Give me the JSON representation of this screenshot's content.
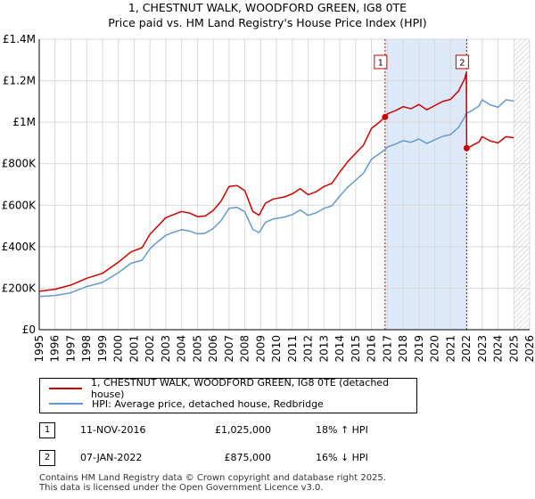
{
  "title_line1": "1, CHESTNUT WALK, WOODFORD GREEN, IG8 0TE",
  "title_line2": "Price paid vs. HM Land Registry's House Price Index (HPI)",
  "colors": {
    "property": "#cc0000",
    "hpi": "#6699cc",
    "shade": "#dde8f8",
    "grid": "#d9d9d9"
  },
  "chart_data": {
    "type": "line",
    "xlim": [
      1995,
      2026
    ],
    "ylim": [
      0,
      1400000
    ],
    "x_ticks": [
      "1995",
      "1996",
      "1997",
      "1998",
      "1999",
      "2000",
      "2001",
      "2002",
      "2003",
      "2004",
      "2005",
      "2006",
      "2007",
      "2008",
      "2009",
      "2010",
      "2011",
      "2012",
      "2013",
      "2014",
      "2015",
      "2016",
      "2017",
      "2018",
      "2019",
      "2020",
      "2021",
      "2022",
      "2023",
      "2024",
      "2025",
      "2026"
    ],
    "y_ticks": [
      {
        "value": 0,
        "label": "£0"
      },
      {
        "value": 200000,
        "label": "£200K"
      },
      {
        "value": 400000,
        "label": "£400K"
      },
      {
        "value": 600000,
        "label": "£600K"
      },
      {
        "value": 800000,
        "label": "£800K"
      },
      {
        "value": 1000000,
        "label": "£1M"
      },
      {
        "value": 1200000,
        "label": "£1.2M"
      },
      {
        "value": 1400000,
        "label": "£1.4M"
      }
    ],
    "shaded_range": [
      2016.86,
      2022.02
    ],
    "future_hatch_from": 2025.0,
    "series": [
      {
        "name": "1, CHESTNUT WALK, WOODFORD GREEN, IG8 0TE (detached house)",
        "color": "#cc0000",
        "x": [
          1995,
          1996,
          1997,
          1998,
          1999,
          2000,
          2000.8,
          2001.5,
          2002,
          2002.5,
          2003,
          2003.5,
          2004,
          2004.5,
          2005,
          2005.5,
          2006,
          2006.5,
          2007,
          2007.5,
          2008,
          2008.5,
          2008.9,
          2009.3,
          2009.8,
          2010.5,
          2011,
          2011.5,
          2012,
          2012.5,
          2013,
          2013.5,
          2014,
          2014.5,
          2015,
          2015.5,
          2016,
          2016.5,
          2016.86,
          2017,
          2017.5,
          2018,
          2018.5,
          2019,
          2019.5,
          2020,
          2020.5,
          2021,
          2021.5,
          2021.9,
          2022.0,
          2022.02,
          2022.3,
          2022.8,
          2023,
          2023.5,
          2024,
          2024.5,
          2025
        ],
        "y": [
          185000,
          195000,
          215000,
          248000,
          272000,
          325000,
          375000,
          395000,
          460000,
          500000,
          540000,
          555000,
          570000,
          562000,
          545000,
          548000,
          575000,
          620000,
          690000,
          695000,
          670000,
          570000,
          552000,
          610000,
          630000,
          640000,
          655000,
          680000,
          650000,
          665000,
          690000,
          705000,
          760000,
          810000,
          850000,
          890000,
          970000,
          1000000,
          1025000,
          1040000,
          1055000,
          1075000,
          1065000,
          1085000,
          1060000,
          1080000,
          1100000,
          1110000,
          1150000,
          1210000,
          1240000,
          875000,
          885000,
          905000,
          930000,
          910000,
          900000,
          930000,
          925000
        ]
      },
      {
        "name": "HPI: Average price, detached house, Redbridge",
        "color": "#6699cc",
        "x": [
          1995,
          1996,
          1997,
          1998,
          1999,
          2000,
          2000.8,
          2001.5,
          2002,
          2002.5,
          2003,
          2003.5,
          2004,
          2004.5,
          2005,
          2005.5,
          2006,
          2006.5,
          2007,
          2007.5,
          2008,
          2008.5,
          2008.9,
          2009.3,
          2009.8,
          2010.5,
          2011,
          2011.5,
          2012,
          2012.5,
          2013,
          2013.5,
          2014,
          2014.5,
          2015,
          2015.5,
          2016,
          2016.5,
          2016.86,
          2017,
          2017.5,
          2018,
          2018.5,
          2019,
          2019.5,
          2020,
          2020.5,
          2021,
          2021.5,
          2021.9,
          2022.0,
          2022.02,
          2022.3,
          2022.8,
          2023,
          2023.5,
          2024,
          2024.5,
          2025
        ],
        "y": [
          160000,
          165000,
          178000,
          208000,
          228000,
          275000,
          320000,
          335000,
          390000,
          425000,
          455000,
          470000,
          482000,
          476000,
          462000,
          465000,
          488000,
          526000,
          585000,
          590000,
          568000,
          483000,
          468000,
          518000,
          534000,
          543000,
          555000,
          577000,
          551000,
          563000,
          585000,
          597000,
          644000,
          687000,
          720000,
          755000,
          822000,
          848000,
          868000,
          880000,
          894000,
          911000,
          903000,
          919000,
          898000,
          915000,
          932000,
          940000,
          975000,
          1026000,
          1045000,
          1043000,
          1054000,
          1078000,
          1108000,
          1084000,
          1072000,
          1108000,
          1102000
        ]
      }
    ],
    "sales": [
      {
        "label": "1",
        "x": 2016.86,
        "y": 1025000
      },
      {
        "label": "2",
        "x": 2022.02,
        "y": 875000
      }
    ]
  },
  "legend": {
    "property": "1, CHESTNUT WALK, WOODFORD GREEN, IG8 0TE (detached house)",
    "hpi": "HPI: Average price, detached house, Redbridge"
  },
  "transactions": [
    {
      "num": "1",
      "date": "11-NOV-2016",
      "price": "£1,025,000",
      "hpi": "18% ↑ HPI"
    },
    {
      "num": "2",
      "date": "07-JAN-2022",
      "price": "£875,000",
      "hpi": "16% ↓ HPI"
    }
  ],
  "footer_line1": "Contains HM Land Registry data © Crown copyright and database right 2025.",
  "footer_line2": "This data is licensed under the Open Government Licence v3.0."
}
